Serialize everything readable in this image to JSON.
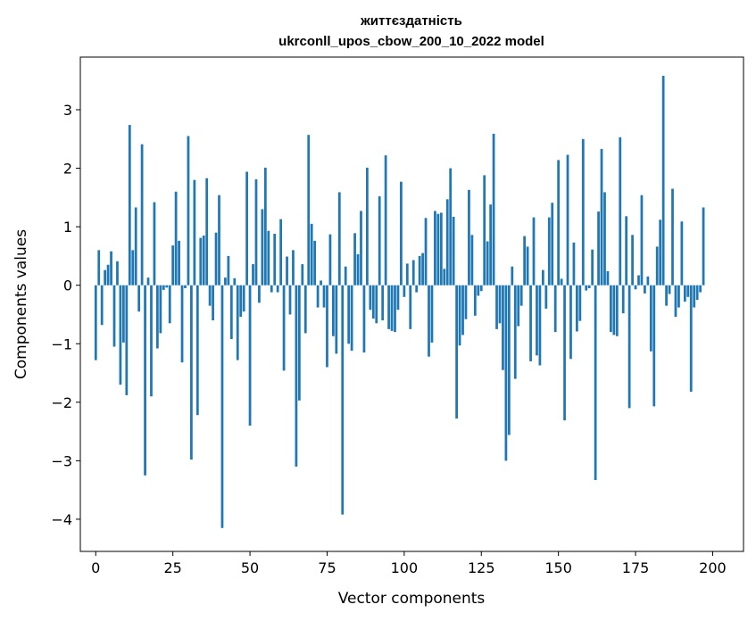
{
  "chart_data": {
    "type": "bar",
    "title_line1": "життєздатність",
    "title_line2": "ukrconll_upos_cbow_200_10_2022 model",
    "xlabel": "Vector components",
    "ylabel": "Components values",
    "xlim": [
      -5,
      210
    ],
    "ylim": [
      -4.55,
      3.9
    ],
    "xticks": [
      0,
      25,
      50,
      75,
      100,
      125,
      150,
      175,
      200
    ],
    "yticks": [
      3,
      2,
      1,
      0,
      -1,
      -2,
      -3,
      -4
    ],
    "ytick_labels": [
      "3",
      "2",
      "1",
      "0",
      "−1",
      "−2",
      "−3",
      "−4"
    ],
    "bar_color": "#1f77b4",
    "values": [
      -1.28,
      0.6,
      -0.68,
      0.26,
      0.35,
      0.58,
      -1.05,
      0.41,
      -1.7,
      -0.98,
      -1.88,
      2.74,
      0.6,
      1.33,
      -0.45,
      2.41,
      -3.25,
      0.13,
      -1.9,
      1.42,
      -1.08,
      -0.82,
      -0.08,
      -0.04,
      -0.65,
      0.68,
      1.6,
      0.76,
      -1.32,
      -0.05,
      2.55,
      -2.98,
      1.8,
      -2.22,
      0.81,
      0.85,
      1.83,
      -0.35,
      -0.6,
      0.9,
      1.54,
      -4.15,
      0.13,
      0.5,
      -0.92,
      0.12,
      -1.28,
      -0.54,
      -0.45,
      1.94,
      -2.4,
      0.36,
      1.81,
      -0.3,
      1.3,
      2.01,
      0.93,
      -0.12,
      0.88,
      -0.12,
      1.13,
      -1.46,
      0.49,
      -0.5,
      0.6,
      -3.1,
      -1.97,
      0.36,
      -0.82,
      2.57,
      1.05,
      0.76,
      -0.38,
      0.08,
      -0.38,
      -1.4,
      0.87,
      -0.87,
      -1.17,
      1.59,
      -3.92,
      0.32,
      -1.0,
      -1.12,
      0.89,
      0.53,
      1.27,
      -1.15,
      2.01,
      -0.42,
      -0.57,
      -0.65,
      1.52,
      -0.6,
      2.22,
      -0.75,
      -0.78,
      -0.8,
      -0.42,
      1.77,
      -0.2,
      0.37,
      -0.75,
      0.43,
      -0.12,
      0.5,
      0.55,
      1.15,
      -1.22,
      -0.98,
      1.27,
      1.22,
      1.24,
      0.28,
      1.47,
      2.0,
      1.17,
      -2.28,
      -1.03,
      -0.85,
      -0.58,
      1.63,
      0.86,
      -0.52,
      -0.18,
      -0.1,
      1.88,
      0.75,
      1.38,
      2.59,
      -0.75,
      -0.65,
      -1.45,
      -3.0,
      -2.56,
      0.32,
      -1.6,
      -0.7,
      -0.35,
      0.84,
      0.66,
      -1.3,
      1.16,
      -1.2,
      -1.37,
      0.26,
      -0.4,
      1.16,
      1.41,
      -0.8,
      2.14,
      0.11,
      -2.31,
      2.23,
      -1.26,
      0.73,
      -0.79,
      -0.61,
      2.5,
      -0.09,
      -0.05,
      0.61,
      -3.33,
      1.26,
      2.33,
      1.59,
      0.24,
      -0.8,
      -0.85,
      -0.87,
      2.53,
      -0.48,
      1.18,
      -2.1,
      0.86,
      -0.07,
      0.17,
      1.54,
      -0.14,
      0.15,
      -1.13,
      -2.07,
      0.66,
      1.12,
      3.58,
      -0.35,
      -0.15,
      1.65,
      -0.54,
      -0.38,
      1.09,
      -0.28,
      -0.2,
      -1.82,
      -0.38,
      -0.25,
      -0.12,
      1.33
    ]
  }
}
